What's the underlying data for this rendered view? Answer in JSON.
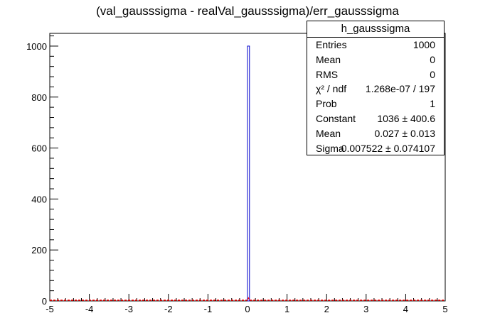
{
  "chart_data": {
    "type": "bar",
    "title": "(val_gausssigma - realVal_gausssigma)/err_gausssigma",
    "xlabel": "",
    "ylabel": "",
    "xlim": [
      -5,
      5
    ],
    "ylim": [
      0,
      1050
    ],
    "x_ticks": [
      "-5",
      "-4",
      "-3",
      "-2",
      "-1",
      "0",
      "1",
      "2",
      "3",
      "4",
      "5"
    ],
    "y_ticks": [
      "0",
      "200",
      "400",
      "600",
      "800",
      "1000"
    ],
    "bins": 200,
    "histogram": [
      {
        "x_low": 0.0,
        "x_high": 0.05,
        "value": 1000
      }
    ],
    "fit": {
      "function": "gaussian",
      "constant": 1036,
      "mean": 0.027,
      "sigma": 0.007522
    },
    "colors": {
      "histogram": "#0000cc",
      "fit": "#ff0000",
      "axis": "#000000"
    }
  },
  "stats": {
    "name": "h_gausssigma",
    "rows": [
      {
        "label": "Entries",
        "value": "1000"
      },
      {
        "label": "Mean",
        "value": "0"
      },
      {
        "label": "RMS",
        "value": "0"
      },
      {
        "label": "χ² / ndf",
        "value": "1.268e-07 / 197"
      },
      {
        "label": "Prob",
        "value": "1"
      },
      {
        "label": "Constant",
        "value": "1036 ± 400.6"
      },
      {
        "label": "Mean",
        "value": "0.027 ± 0.013"
      },
      {
        "label": "Sigma",
        "value": "0.007522 ± 0.074107"
      }
    ]
  }
}
